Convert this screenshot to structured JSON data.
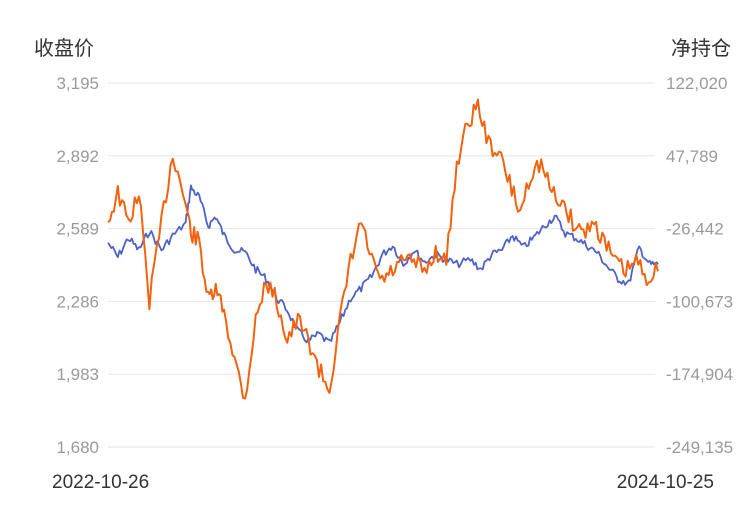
{
  "chart_data": {
    "type": "line",
    "ylabel_left": "收盘价",
    "ylabel_right": "净持仓",
    "left_ticks": [
      "3,195",
      "2,892",
      "2,589",
      "2,286",
      "1,983",
      "1,680"
    ],
    "right_ticks": [
      "122,020",
      "47,789",
      "-26,442",
      "-100,673",
      "-174,904",
      "-249,135"
    ],
    "ylim_left": [
      1680,
      3195
    ],
    "ylim_right": [
      -249135,
      122020
    ],
    "x_range": [
      "2022-10-26",
      "2024-10-25"
    ],
    "x_tick_labels": [
      "2022-10-26",
      "2024-10-25"
    ],
    "grid": true,
    "series": [
      {
        "axis": "left",
        "color": "#4e62c8",
        "points": [
          [
            "2022-10-26",
            2530
          ],
          [
            "2022-11-08",
            2470
          ],
          [
            "2022-11-22",
            2550
          ],
          [
            "2022-12-06",
            2500
          ],
          [
            "2022-12-20",
            2580
          ],
          [
            "2023-01-05",
            2500
          ],
          [
            "2023-01-20",
            2560
          ],
          [
            "2023-02-06",
            2610
          ],
          [
            "2023-02-13",
            2760
          ],
          [
            "2023-02-24",
            2720
          ],
          [
            "2023-03-08",
            2600
          ],
          [
            "2023-03-18",
            2640
          ],
          [
            "2023-03-29",
            2560
          ],
          [
            "2023-04-12",
            2500
          ],
          [
            "2023-04-26",
            2490
          ],
          [
            "2023-05-10",
            2420
          ],
          [
            "2023-05-24",
            2380
          ],
          [
            "2023-06-07",
            2300
          ],
          [
            "2023-06-21",
            2250
          ],
          [
            "2023-07-05",
            2160
          ],
          [
            "2023-07-19",
            2120
          ],
          [
            "2023-08-02",
            2150
          ],
          [
            "2023-08-16",
            2110
          ],
          [
            "2023-08-30",
            2200
          ],
          [
            "2023-09-13",
            2300
          ],
          [
            "2023-09-27",
            2340
          ],
          [
            "2023-10-11",
            2390
          ],
          [
            "2023-10-25",
            2480
          ],
          [
            "2023-11-08",
            2520
          ],
          [
            "2023-11-22",
            2440
          ],
          [
            "2023-12-06",
            2500
          ],
          [
            "2023-12-20",
            2450
          ],
          [
            "2024-01-04",
            2480
          ],
          [
            "2024-01-18",
            2460
          ],
          [
            "2024-02-01",
            2440
          ],
          [
            "2024-02-19",
            2460
          ],
          [
            "2024-03-04",
            2420
          ],
          [
            "2024-03-18",
            2480
          ],
          [
            "2024-04-01",
            2500
          ],
          [
            "2024-04-15",
            2560
          ],
          [
            "2024-04-29",
            2510
          ],
          [
            "2024-05-13",
            2550
          ],
          [
            "2024-05-27",
            2600
          ],
          [
            "2024-06-10",
            2640
          ],
          [
            "2024-06-24",
            2570
          ],
          [
            "2024-07-08",
            2550
          ],
          [
            "2024-07-22",
            2520
          ],
          [
            "2024-08-05",
            2490
          ],
          [
            "2024-08-19",
            2430
          ],
          [
            "2024-09-02",
            2380
          ],
          [
            "2024-09-16",
            2360
          ],
          [
            "2024-09-30",
            2510
          ],
          [
            "2024-10-14",
            2440
          ],
          [
            "2024-10-25",
            2440
          ]
        ]
      },
      {
        "axis": "right",
        "color": "#f2620f",
        "points": [
          [
            "2022-10-26",
            -20000
          ],
          [
            "2022-11-08",
            10000
          ],
          [
            "2022-11-22",
            -20000
          ],
          [
            "2022-12-06",
            10000
          ],
          [
            "2022-12-20",
            -100000
          ],
          [
            "2023-01-05",
            -20000
          ],
          [
            "2023-01-20",
            50000
          ],
          [
            "2023-02-06",
            0
          ],
          [
            "2023-02-13",
            -30000
          ],
          [
            "2023-02-24",
            -40000
          ],
          [
            "2023-03-08",
            -100000
          ],
          [
            "2023-03-18",
            -90000
          ],
          [
            "2023-03-29",
            -110000
          ],
          [
            "2023-04-12",
            -160000
          ],
          [
            "2023-04-26",
            -200000
          ],
          [
            "2023-05-10",
            -120000
          ],
          [
            "2023-05-24",
            -80000
          ],
          [
            "2023-06-07",
            -100000
          ],
          [
            "2023-06-21",
            -140000
          ],
          [
            "2023-07-05",
            -120000
          ],
          [
            "2023-07-19",
            -140000
          ],
          [
            "2023-08-02",
            -170000
          ],
          [
            "2023-08-16",
            -190000
          ],
          [
            "2023-08-30",
            -120000
          ],
          [
            "2023-09-13",
            -60000
          ],
          [
            "2023-09-27",
            -20000
          ],
          [
            "2023-10-11",
            -60000
          ],
          [
            "2023-10-25",
            -80000
          ],
          [
            "2023-11-08",
            -70000
          ],
          [
            "2023-11-22",
            -60000
          ],
          [
            "2023-12-06",
            -60000
          ],
          [
            "2023-12-20",
            -70000
          ],
          [
            "2024-01-04",
            -50000
          ],
          [
            "2024-01-18",
            -60000
          ],
          [
            "2024-02-01",
            40000
          ],
          [
            "2024-02-15",
            80000
          ],
          [
            "2024-02-29",
            100000
          ],
          [
            "2024-03-14",
            60000
          ],
          [
            "2024-03-28",
            50000
          ],
          [
            "2024-04-11",
            20000
          ],
          [
            "2024-04-25",
            -10000
          ],
          [
            "2024-05-09",
            30000
          ],
          [
            "2024-05-23",
            40000
          ],
          [
            "2024-06-06",
            10000
          ],
          [
            "2024-06-20",
            0
          ],
          [
            "2024-07-04",
            -20000
          ],
          [
            "2024-07-18",
            -30000
          ],
          [
            "2024-08-01",
            -20000
          ],
          [
            "2024-08-15",
            -40000
          ],
          [
            "2024-08-29",
            -60000
          ],
          [
            "2024-09-12",
            -70000
          ],
          [
            "2024-09-26",
            -60000
          ],
          [
            "2024-10-10",
            -75000
          ],
          [
            "2024-10-25",
            -70000
          ]
        ]
      }
    ]
  }
}
